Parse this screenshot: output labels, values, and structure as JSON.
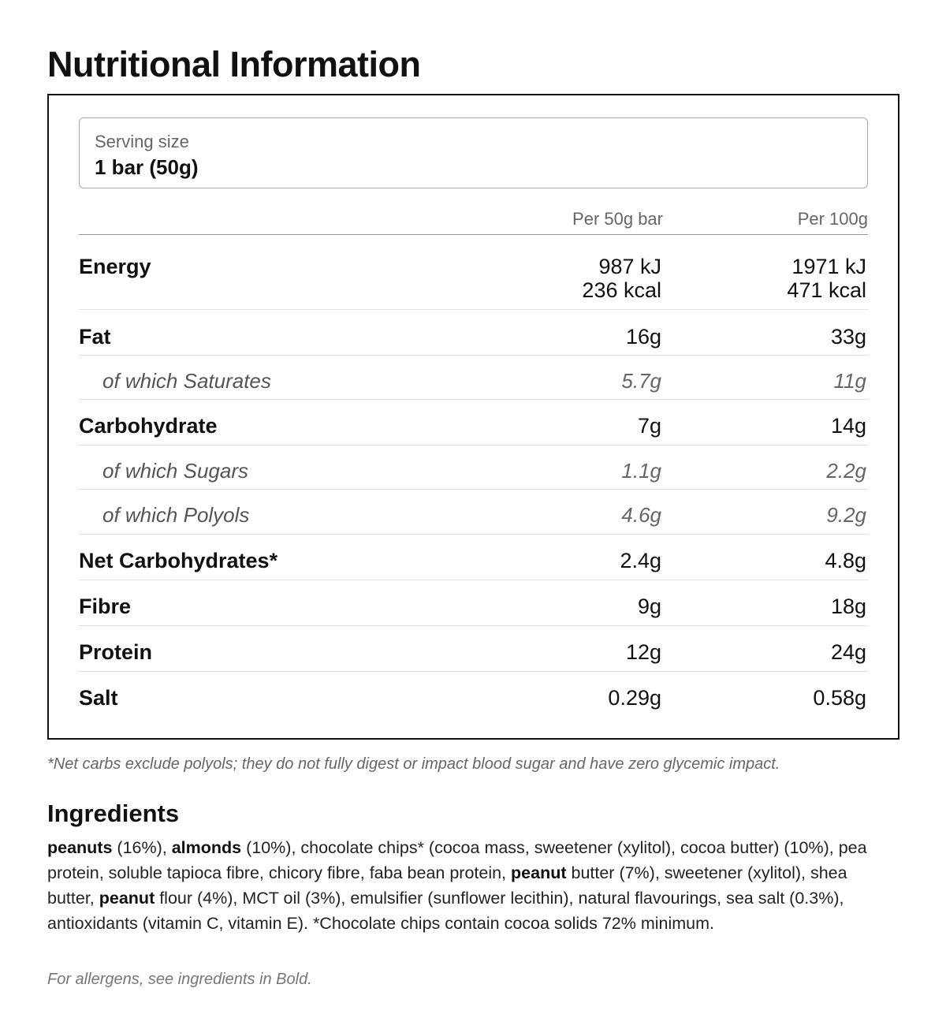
{
  "title": "Nutritional Information",
  "serving": {
    "label": "Serving size",
    "value": "1 bar (50g)"
  },
  "columns": {
    "per_portion": "Per 50g bar",
    "per_100": "Per 100g"
  },
  "rows": [
    {
      "name": "Energy",
      "v1_line1": "987 kJ",
      "v1_line2": "236 kcal",
      "v2_line1": "1971 kJ",
      "v2_line2": "471 kcal"
    },
    {
      "name": "Fat",
      "v1": "16g",
      "v2": "33g"
    },
    {
      "name": "of which Saturates",
      "v1": "5.7g",
      "v2": "11g"
    },
    {
      "name": "Carbohydrate",
      "v1": "7g",
      "v2": "14g"
    },
    {
      "name": "of which Sugars",
      "v1": "1.1g",
      "v2": "2.2g"
    },
    {
      "name": "of which Polyols",
      "v1": "4.6g",
      "v2": "9.2g"
    },
    {
      "name": "Net Carbohydrates*",
      "v1": "2.4g",
      "v2": "4.8g"
    },
    {
      "name": "Fibre",
      "v1": "9g",
      "v2": "18g"
    },
    {
      "name": "Protein",
      "v1": "12g",
      "v2": "24g"
    },
    {
      "name": "Salt",
      "v1": "0.29g",
      "v2": "0.58g"
    }
  ],
  "footnote": "*Net carbs exclude polyols; they do not fully digest or impact blood sugar and have zero glycemic impact.",
  "ingredients": {
    "heading": "Ingredients",
    "segments": [
      {
        "bold": "peanuts",
        "text": " (16%), "
      },
      {
        "bold": "almonds",
        "text": " (10%), chocolate chips* (cocoa mass, sweetener (xylitol), cocoa butter) (10%), pea protein, soluble tapioca fibre, chicory fibre, faba bean protein, "
      },
      {
        "bold": "peanut",
        "text": " butter (7%), sweetener (xylitol), shea butter, "
      },
      {
        "bold": "peanut",
        "text": " flour (4%), MCT oil (3%), emulsifier (sunflower lecithin), natural flavourings, sea salt (0.3%), antioxidants (vitamin C, vitamin E). *Chocolate chips contain cocoa solids 72% minimum."
      }
    ],
    "allergen_note": "For allergens, see ingredients in Bold."
  }
}
